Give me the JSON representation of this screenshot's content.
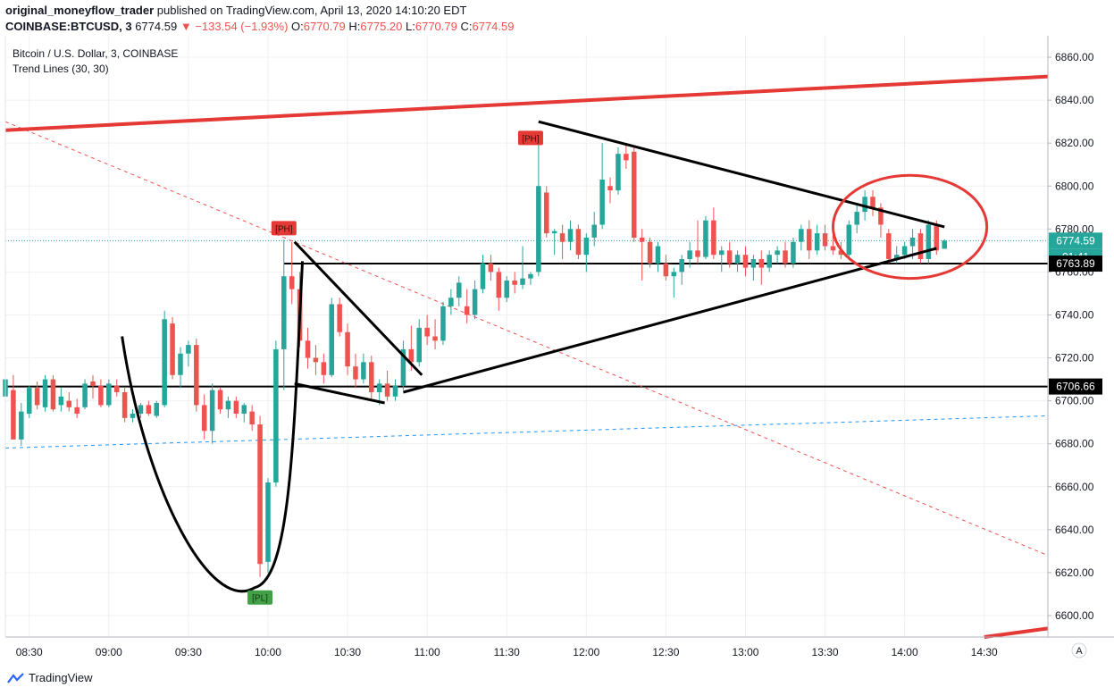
{
  "header": {
    "author": "original_moneyflow_trader",
    "published": "published on TradingView.com, April 13, 2020 14:10:20 EDT",
    "symbol": "COINBASE:BTCUSD, 3",
    "price": "6774.59",
    "change": "−133.54 (−1.93%)",
    "o_label": "O:",
    "o_value": "6770.79",
    "h_label": "H:",
    "h_value": "6775.20",
    "l_label": "L:",
    "l_value": "6770.79",
    "c_label": "C:",
    "c_value": "6774.59"
  },
  "legend": {
    "title": "Bitcoin / U.S. Dollar, 3, COINBASE",
    "indicator": "Trend Lines (30, 30)"
  },
  "footer": {
    "brand": "TradingView"
  },
  "colors": {
    "up": "#26a69a",
    "down": "#ef5350",
    "trend_red": "#e53935",
    "grid": "#eef0f3",
    "axis_text": "#131722",
    "dashed_blue": "#2196f3"
  },
  "chart_data": {
    "type": "candlestick",
    "ylim": [
      6590,
      6870
    ],
    "y_ticks": [
      6600,
      6620,
      6640,
      6660,
      6680,
      6700,
      6720,
      6740,
      6760,
      6780,
      6800,
      6820,
      6840,
      6860
    ],
    "x_range": [
      "08:21",
      "14:54"
    ],
    "x_ticks": [
      {
        "time": "08:30",
        "label": "08:30"
      },
      {
        "time": "09:00",
        "label": "09:00"
      },
      {
        "time": "09:30",
        "label": "09:30"
      },
      {
        "time": "10:00",
        "label": "10:00"
      },
      {
        "time": "10:30",
        "label": "10:30"
      },
      {
        "time": "11:00",
        "label": "11:00"
      },
      {
        "time": "11:30",
        "label": "11:30"
      },
      {
        "time": "12:00",
        "label": "12:00"
      },
      {
        "time": "12:30",
        "label": "12:30"
      },
      {
        "time": "13:00",
        "label": "13:00"
      },
      {
        "time": "13:30",
        "label": "13:30"
      },
      {
        "time": "14:00",
        "label": "14:00"
      },
      {
        "time": "14:30",
        "label": "14:30"
      }
    ],
    "price_labels": [
      {
        "value": 6774.59,
        "text": "6774.59",
        "style": "current"
      },
      {
        "value": 6769.0,
        "text": "01:41",
        "style": "countdown"
      },
      {
        "value": 6763.89,
        "text": "6763.89",
        "style": "line"
      },
      {
        "value": 6706.66,
        "text": "6706.66",
        "style": "line"
      }
    ],
    "horizontal_lines": [
      {
        "y": 6763.89,
        "from": "10:06"
      },
      {
        "y": 6706.66,
        "from": "08:21"
      }
    ],
    "trend_lines": [
      {
        "style": "red",
        "from": [
          "08:21",
          6826
        ],
        "to": [
          "14:54",
          6851
        ]
      },
      {
        "style": "black",
        "from": [
          "11:42",
          6830
        ],
        "to": [
          "14:15",
          6781
        ]
      },
      {
        "style": "black",
        "from": [
          "10:51",
          6704
        ],
        "to": [
          "14:12",
          6771
        ]
      },
      {
        "style": "black",
        "from": [
          "10:10",
          6774
        ],
        "to": [
          "10:58",
          6712
        ]
      },
      {
        "style": "black",
        "from": [
          "10:10",
          6708
        ],
        "to": [
          "10:44",
          6699
        ]
      },
      {
        "style": "red-dashed",
        "from": [
          "08:21",
          6830
        ],
        "to": [
          "14:54",
          6628
        ]
      },
      {
        "style": "blue-dashed",
        "from": [
          "08:21",
          6678
        ],
        "to": [
          "14:54",
          6693
        ]
      }
    ],
    "cup_curve": {
      "left": [
        "09:05",
        6730
      ],
      "bottom": [
        "09:55",
        6613
      ],
      "right": [
        "10:13",
        6765
      ]
    },
    "ellipse": {
      "center": [
        "14:02",
        6781
      ],
      "rx_minutes": 29,
      "ry_price": 24
    },
    "pivot_labels": [
      {
        "text": "[PH]",
        "time": "10:06",
        "y": 6780,
        "kind": "high"
      },
      {
        "text": "[PH]",
        "time": "11:39",
        "y": 6822,
        "kind": "high"
      },
      {
        "text": "[PL]",
        "time": "09:57",
        "y": 6608,
        "kind": "low"
      }
    ],
    "candles": [
      {
        "t": "08:21",
        "o": 6702,
        "h": 6712,
        "l": 6700,
        "c": 6710
      },
      {
        "t": "08:24",
        "o": 6705,
        "h": 6712,
        "l": 6682,
        "c": 6682
      },
      {
        "t": "08:27",
        "o": 6682,
        "h": 6699,
        "l": 6679,
        "c": 6695
      },
      {
        "t": "08:30",
        "o": 6694,
        "h": 6707,
        "l": 6692,
        "c": 6706
      },
      {
        "t": "08:33",
        "o": 6706,
        "h": 6709,
        "l": 6696,
        "c": 6698
      },
      {
        "t": "08:36",
        "o": 6697,
        "h": 6712,
        "l": 6695,
        "c": 6710
      },
      {
        "t": "08:39",
        "o": 6710,
        "h": 6712,
        "l": 6695,
        "c": 6696
      },
      {
        "t": "08:42",
        "o": 6698,
        "h": 6706,
        "l": 6695,
        "c": 6702
      },
      {
        "t": "08:45",
        "o": 6700,
        "h": 6704,
        "l": 6695,
        "c": 6697
      },
      {
        "t": "08:48",
        "o": 6697,
        "h": 6701,
        "l": 6692,
        "c": 6694
      },
      {
        "t": "08:51",
        "o": 6697,
        "h": 6710,
        "l": 6696,
        "c": 6708
      },
      {
        "t": "08:54",
        "o": 6709,
        "h": 6712,
        "l": 6701,
        "c": 6707
      },
      {
        "t": "08:57",
        "o": 6707,
        "h": 6710,
        "l": 6697,
        "c": 6698
      },
      {
        "t": "09:00",
        "o": 6698,
        "h": 6710,
        "l": 6697,
        "c": 6708
      },
      {
        "t": "09:03",
        "o": 6707,
        "h": 6710,
        "l": 6702,
        "c": 6704
      },
      {
        "t": "09:06",
        "o": 6704,
        "h": 6706,
        "l": 6690,
        "c": 6692
      },
      {
        "t": "09:09",
        "o": 6692,
        "h": 6696,
        "l": 6690,
        "c": 6694
      },
      {
        "t": "09:12",
        "o": 6694,
        "h": 6699,
        "l": 6692,
        "c": 6698
      },
      {
        "t": "09:15",
        "o": 6698,
        "h": 6700,
        "l": 6693,
        "c": 6694
      },
      {
        "t": "09:18",
        "o": 6693,
        "h": 6700,
        "l": 6692,
        "c": 6699
      },
      {
        "t": "09:21",
        "o": 6698,
        "h": 6742,
        "l": 6697,
        "c": 6738
      },
      {
        "t": "09:24",
        "o": 6736,
        "h": 6739,
        "l": 6710,
        "c": 6712
      },
      {
        "t": "09:27",
        "o": 6712,
        "h": 6725,
        "l": 6706,
        "c": 6722
      },
      {
        "t": "09:30",
        "o": 6722,
        "h": 6728,
        "l": 6716,
        "c": 6726
      },
      {
        "t": "09:33",
        "o": 6726,
        "h": 6729,
        "l": 6695,
        "c": 6698
      },
      {
        "t": "09:36",
        "o": 6698,
        "h": 6703,
        "l": 6682,
        "c": 6686
      },
      {
        "t": "09:39",
        "o": 6686,
        "h": 6708,
        "l": 6680,
        "c": 6705
      },
      {
        "t": "09:42",
        "o": 6705,
        "h": 6706,
        "l": 6694,
        "c": 6696
      },
      {
        "t": "09:45",
        "o": 6696,
        "h": 6702,
        "l": 6692,
        "c": 6700
      },
      {
        "t": "09:48",
        "o": 6700,
        "h": 6702,
        "l": 6692,
        "c": 6694
      },
      {
        "t": "09:51",
        "o": 6694,
        "h": 6699,
        "l": 6690,
        "c": 6698
      },
      {
        "t": "09:54",
        "o": 6695,
        "h": 6698,
        "l": 6686,
        "c": 6689
      },
      {
        "t": "09:57",
        "o": 6689,
        "h": 6693,
        "l": 6618,
        "c": 6624
      },
      {
        "t": "10:00",
        "o": 6625,
        "h": 6664,
        "l": 6620,
        "c": 6662
      },
      {
        "t": "10:03",
        "o": 6662,
        "h": 6728,
        "l": 6660,
        "c": 6724
      },
      {
        "t": "10:06",
        "o": 6724,
        "h": 6775,
        "l": 6705,
        "c": 6758
      },
      {
        "t": "10:09",
        "o": 6758,
        "h": 6774,
        "l": 6745,
        "c": 6752
      },
      {
        "t": "10:12",
        "o": 6752,
        "h": 6760,
        "l": 6725,
        "c": 6728
      },
      {
        "t": "10:15",
        "o": 6728,
        "h": 6734,
        "l": 6715,
        "c": 6720
      },
      {
        "t": "10:18",
        "o": 6720,
        "h": 6726,
        "l": 6712,
        "c": 6718
      },
      {
        "t": "10:21",
        "o": 6718,
        "h": 6722,
        "l": 6708,
        "c": 6712
      },
      {
        "t": "10:24",
        "o": 6712,
        "h": 6748,
        "l": 6711,
        "c": 6745
      },
      {
        "t": "10:27",
        "o": 6745,
        "h": 6748,
        "l": 6730,
        "c": 6732
      },
      {
        "t": "10:30",
        "o": 6732,
        "h": 6736,
        "l": 6712,
        "c": 6716
      },
      {
        "t": "10:33",
        "o": 6716,
        "h": 6722,
        "l": 6706,
        "c": 6710
      },
      {
        "t": "10:36",
        "o": 6710,
        "h": 6722,
        "l": 6708,
        "c": 6718
      },
      {
        "t": "10:39",
        "o": 6718,
        "h": 6721,
        "l": 6700,
        "c": 6704
      },
      {
        "t": "10:42",
        "o": 6704,
        "h": 6710,
        "l": 6698,
        "c": 6708
      },
      {
        "t": "10:45",
        "o": 6708,
        "h": 6714,
        "l": 6700,
        "c": 6702
      },
      {
        "t": "10:48",
        "o": 6702,
        "h": 6710,
        "l": 6700,
        "c": 6707
      },
      {
        "t": "10:51",
        "o": 6707,
        "h": 6728,
        "l": 6705,
        "c": 6724
      },
      {
        "t": "10:54",
        "o": 6724,
        "h": 6735,
        "l": 6714,
        "c": 6718
      },
      {
        "t": "10:57",
        "o": 6718,
        "h": 6738,
        "l": 6716,
        "c": 6734
      },
      {
        "t": "11:00",
        "o": 6734,
        "h": 6740,
        "l": 6726,
        "c": 6730
      },
      {
        "t": "11:03",
        "o": 6730,
        "h": 6738,
        "l": 6724,
        "c": 6728
      },
      {
        "t": "11:06",
        "o": 6728,
        "h": 6746,
        "l": 6726,
        "c": 6744
      },
      {
        "t": "11:09",
        "o": 6744,
        "h": 6752,
        "l": 6740,
        "c": 6748
      },
      {
        "t": "11:12",
        "o": 6748,
        "h": 6758,
        "l": 6744,
        "c": 6755
      },
      {
        "t": "11:15",
        "o": 6744,
        "h": 6752,
        "l": 6736,
        "c": 6740
      },
      {
        "t": "11:18",
        "o": 6740,
        "h": 6756,
        "l": 6738,
        "c": 6752
      },
      {
        "t": "11:21",
        "o": 6752,
        "h": 6768,
        "l": 6750,
        "c": 6764
      },
      {
        "t": "11:24",
        "o": 6764,
        "h": 6768,
        "l": 6756,
        "c": 6760
      },
      {
        "t": "11:27",
        "o": 6760,
        "h": 6762,
        "l": 6742,
        "c": 6748
      },
      {
        "t": "11:30",
        "o": 6748,
        "h": 6758,
        "l": 6746,
        "c": 6756
      },
      {
        "t": "11:33",
        "o": 6756,
        "h": 6760,
        "l": 6750,
        "c": 6754
      },
      {
        "t": "11:36",
        "o": 6754,
        "h": 6772,
        "l": 6752,
        "c": 6757
      },
      {
        "t": "11:39",
        "o": 6757,
        "h": 6760,
        "l": 6754,
        "c": 6759
      },
      {
        "t": "11:42",
        "o": 6760,
        "h": 6822,
        "l": 6758,
        "c": 6800
      },
      {
        "t": "11:45",
        "o": 6797,
        "h": 6800,
        "l": 6776,
        "c": 6778
      },
      {
        "t": "11:48",
        "o": 6778,
        "h": 6780,
        "l": 6768,
        "c": 6779
      },
      {
        "t": "11:51",
        "o": 6778,
        "h": 6782,
        "l": 6766,
        "c": 6774
      },
      {
        "t": "11:54",
        "o": 6774,
        "h": 6784,
        "l": 6770,
        "c": 6780
      },
      {
        "t": "11:57",
        "o": 6780,
        "h": 6782,
        "l": 6766,
        "c": 6768
      },
      {
        "t": "12:00",
        "o": 6768,
        "h": 6778,
        "l": 6760,
        "c": 6776
      },
      {
        "t": "12:03",
        "o": 6776,
        "h": 6788,
        "l": 6772,
        "c": 6782
      },
      {
        "t": "12:06",
        "o": 6782,
        "h": 6820,
        "l": 6780,
        "c": 6803
      },
      {
        "t": "12:09",
        "o": 6800,
        "h": 6804,
        "l": 6792,
        "c": 6798
      },
      {
        "t": "12:12",
        "o": 6798,
        "h": 6818,
        "l": 6796,
        "c": 6815
      },
      {
        "t": "12:15",
        "o": 6815,
        "h": 6820,
        "l": 6808,
        "c": 6812
      },
      {
        "t": "12:18",
        "o": 6816,
        "h": 6818,
        "l": 6774,
        "c": 6776
      },
      {
        "t": "12:21",
        "o": 6776,
        "h": 6780,
        "l": 6756,
        "c": 6774
      },
      {
        "t": "12:24",
        "o": 6774,
        "h": 6776,
        "l": 6762,
        "c": 6764
      },
      {
        "t": "12:27",
        "o": 6764,
        "h": 6774,
        "l": 6760,
        "c": 6772
      },
      {
        "t": "12:30",
        "o": 6764,
        "h": 6768,
        "l": 6756,
        "c": 6758
      },
      {
        "t": "12:33",
        "o": 6758,
        "h": 6762,
        "l": 6748,
        "c": 6760
      },
      {
        "t": "12:36",
        "o": 6760,
        "h": 6768,
        "l": 6754,
        "c": 6766
      },
      {
        "t": "12:39",
        "o": 6766,
        "h": 6774,
        "l": 6762,
        "c": 6770
      },
      {
        "t": "12:42",
        "o": 6770,
        "h": 6784,
        "l": 6764,
        "c": 6767
      },
      {
        "t": "12:45",
        "o": 6767,
        "h": 6786,
        "l": 6766,
        "c": 6784
      },
      {
        "t": "12:48",
        "o": 6784,
        "h": 6790,
        "l": 6766,
        "c": 6768
      },
      {
        "t": "12:51",
        "o": 6768,
        "h": 6772,
        "l": 6760,
        "c": 6770
      },
      {
        "t": "12:54",
        "o": 6770,
        "h": 6774,
        "l": 6762,
        "c": 6764
      },
      {
        "t": "12:57",
        "o": 6764,
        "h": 6770,
        "l": 6760,
        "c": 6768
      },
      {
        "t": "13:00",
        "o": 6768,
        "h": 6772,
        "l": 6758,
        "c": 6762
      },
      {
        "t": "13:03",
        "o": 6762,
        "h": 6768,
        "l": 6756,
        "c": 6766
      },
      {
        "t": "13:06",
        "o": 6766,
        "h": 6770,
        "l": 6754,
        "c": 6762
      },
      {
        "t": "13:09",
        "o": 6762,
        "h": 6770,
        "l": 6760,
        "c": 6768
      },
      {
        "t": "13:12",
        "o": 6768,
        "h": 6772,
        "l": 6764,
        "c": 6770
      },
      {
        "t": "13:15",
        "o": 6770,
        "h": 6774,
        "l": 6762,
        "c": 6764
      },
      {
        "t": "13:18",
        "o": 6764,
        "h": 6776,
        "l": 6762,
        "c": 6774
      },
      {
        "t": "13:21",
        "o": 6774,
        "h": 6782,
        "l": 6770,
        "c": 6780
      },
      {
        "t": "13:24",
        "o": 6780,
        "h": 6784,
        "l": 6766,
        "c": 6770
      },
      {
        "t": "13:27",
        "o": 6770,
        "h": 6782,
        "l": 6768,
        "c": 6778
      },
      {
        "t": "13:30",
        "o": 6778,
        "h": 6782,
        "l": 6770,
        "c": 6772
      },
      {
        "t": "13:33",
        "o": 6772,
        "h": 6778,
        "l": 6768,
        "c": 6770
      },
      {
        "t": "13:36",
        "o": 6770,
        "h": 6774,
        "l": 6766,
        "c": 6768
      },
      {
        "t": "13:39",
        "o": 6768,
        "h": 6784,
        "l": 6766,
        "c": 6782
      },
      {
        "t": "13:42",
        "o": 6782,
        "h": 6792,
        "l": 6778,
        "c": 6788
      },
      {
        "t": "13:45",
        "o": 6788,
        "h": 6798,
        "l": 6784,
        "c": 6795
      },
      {
        "t": "13:48",
        "o": 6795,
        "h": 6798,
        "l": 6786,
        "c": 6790
      },
      {
        "t": "13:51",
        "o": 6790,
        "h": 6792,
        "l": 6776,
        "c": 6782
      },
      {
        "t": "13:54",
        "o": 6778,
        "h": 6780,
        "l": 6764,
        "c": 6766
      },
      {
        "t": "13:57",
        "o": 6766,
        "h": 6772,
        "l": 6764,
        "c": 6768
      },
      {
        "t": "14:00",
        "o": 6768,
        "h": 6774,
        "l": 6766,
        "c": 6772
      },
      {
        "t": "14:03",
        "o": 6772,
        "h": 6780,
        "l": 6766,
        "c": 6776
      },
      {
        "t": "14:06",
        "o": 6778,
        "h": 6780,
        "l": 6764,
        "c": 6766
      },
      {
        "t": "14:09",
        "o": 6766,
        "h": 6784,
        "l": 6764,
        "c": 6782
      },
      {
        "t": "14:12",
        "o": 6782,
        "h": 6784,
        "l": 6768,
        "c": 6770
      },
      {
        "t": "14:15",
        "o": 6770.79,
        "h": 6775.2,
        "l": 6770.79,
        "c": 6774.59
      }
    ]
  }
}
